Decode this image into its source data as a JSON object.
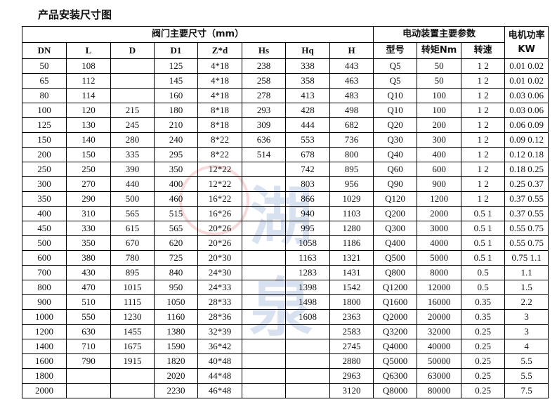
{
  "title": "产品安装尺寸图",
  "headers": {
    "valve_group": "阀门主要尺寸（mm）",
    "actuator_group": "电动装置主要参数",
    "motor_power": "电机功率KW",
    "columns": [
      "DN",
      "L",
      "D",
      "D1",
      "Z*d",
      "Hs",
      "Hq",
      "H",
      "型号",
      "转矩Nm",
      "转速"
    ]
  },
  "watermark": "湖泉",
  "rows": [
    [
      "50",
      "108",
      "",
      "125",
      "4*18",
      "238",
      "338",
      "443",
      "Q5",
      "50",
      "1 2",
      "0.01 0.02"
    ],
    [
      "65",
      "112",
      "",
      "145",
      "4*18",
      "258",
      "358",
      "463",
      "Q5",
      "50",
      "1 2",
      "0.01 0.02"
    ],
    [
      "80",
      "114",
      "",
      "160",
      "4*18",
      "278",
      "413",
      "483",
      "Q10",
      "100",
      "1 2",
      "0.03 0.06"
    ],
    [
      "100",
      "120",
      "215",
      "180",
      "8*18",
      "293",
      "428",
      "498",
      "Q10",
      "100",
      "1 2",
      "0.03 0.06"
    ],
    [
      "125",
      "130",
      "245",
      "210",
      "8*18",
      "309",
      "444",
      "682",
      "Q20",
      "200",
      "1 2",
      "0.06 0.09"
    ],
    [
      "150",
      "140",
      "280",
      "240",
      "8*22",
      "636",
      "553",
      "736",
      "Q30",
      "300",
      "1 2",
      "0.09 0.12"
    ],
    [
      "200",
      "150",
      "335",
      "295",
      "8*22",
      "514",
      "678",
      "800",
      "Q40",
      "400",
      "1 2",
      "0.12 0.18"
    ],
    [
      "250",
      "250",
      "390",
      "350",
      "12*22",
      "",
      "742",
      "895",
      "Q60",
      "600",
      "1 2",
      "0.18 0.25"
    ],
    [
      "300",
      "270",
      "440",
      "400",
      "12*22",
      "",
      "803",
      "956",
      "Q90",
      "900",
      "1 2",
      "0.25 0.37"
    ],
    [
      "350",
      "290",
      "500",
      "460",
      "16*22",
      "",
      "866",
      "1029",
      "Q120",
      "1200",
      "1 2",
      "0.37 0.55"
    ],
    [
      "400",
      "310",
      "565",
      "515",
      "16*26",
      "",
      "940",
      "1103",
      "Q200",
      "2000",
      "0.5 1",
      "0.37 0.55"
    ],
    [
      "450",
      "330",
      "615",
      "565",
      "20*26",
      "",
      "995",
      "1280",
      "Q300",
      "3000",
      "0.5 1",
      "0.55 0.75"
    ],
    [
      "500",
      "350",
      "670",
      "620",
      "20*26",
      "",
      "1058",
      "1186",
      "Q400",
      "4000",
      "0.5 1",
      "0.55 0.75"
    ],
    [
      "600",
      "380",
      "780",
      "725",
      "20*30",
      "",
      "1163",
      "1321",
      "Q500",
      "5000",
      "0.5 1",
      "0.75 1.1"
    ],
    [
      "700",
      "430",
      "895",
      "840",
      "24*30",
      "",
      "1283",
      "1431",
      "Q800",
      "8000",
      "0.5",
      "1.1"
    ],
    [
      "800",
      "470",
      "1015",
      "950",
      "24*33",
      "",
      "1398",
      "1542",
      "Q1200",
      "12000",
      "0.5",
      "1.5"
    ],
    [
      "900",
      "510",
      "1115",
      "1050",
      "28*33",
      "",
      "1498",
      "1800",
      "Q1600",
      "16000",
      "0.35",
      "2.2"
    ],
    [
      "1000",
      "550",
      "1230",
      "1160",
      "28*36",
      "",
      "1608",
      "2363",
      "Q2000",
      "20000",
      "0.35",
      "3"
    ],
    [
      "1200",
      "630",
      "1455",
      "1380",
      "32*39",
      "",
      "",
      "2583",
      "Q3200",
      "32000",
      "0.25",
      "3"
    ],
    [
      "1400",
      "710",
      "1675",
      "1590",
      "36*42",
      "",
      "",
      "2745",
      "Q4000",
      "40000",
      "0.25",
      "4"
    ],
    [
      "1600",
      "790",
      "1915",
      "1820",
      "40*48",
      "",
      "",
      "2880",
      "Q5000",
      "50000",
      "0.25",
      "5.5"
    ],
    [
      "1800",
      "",
      "",
      "2020",
      "44*48",
      "",
      "",
      "2963",
      "Q6300",
      "63000",
      "0.25",
      "5.5"
    ],
    [
      "2000",
      "",
      "",
      "2230",
      "46*48",
      "",
      "",
      "3120",
      "Q8000",
      "80000",
      "0.25",
      "7.5"
    ]
  ]
}
